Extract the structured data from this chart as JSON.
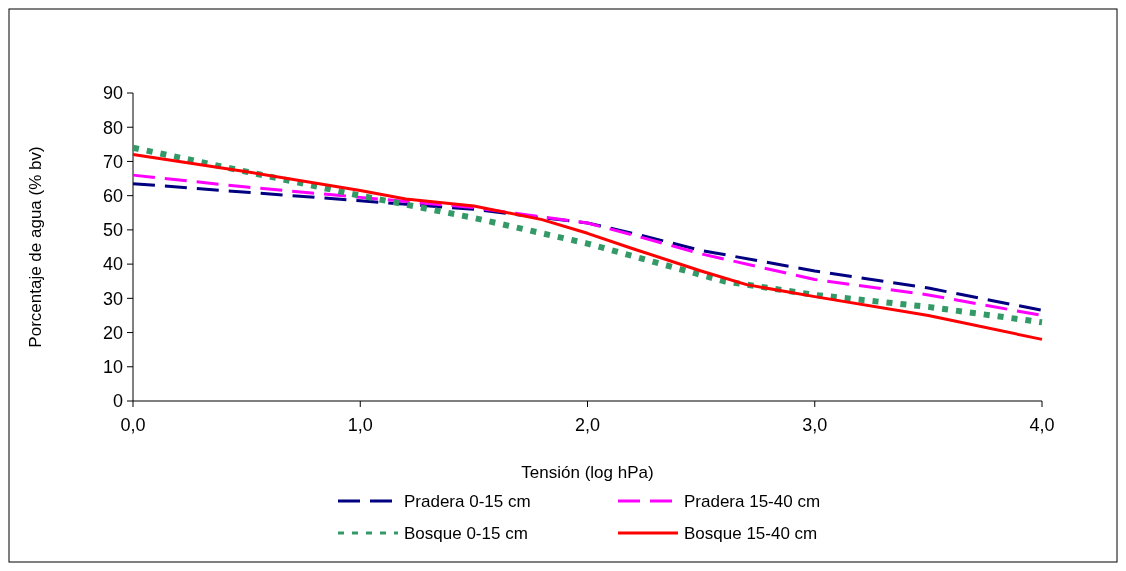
{
  "chart_data": {
    "type": "line",
    "xlabel": "Tensión (log hPa)",
    "ylabel": "Porcentaje de agua (% bv)",
    "xlim": [
      0,
      4
    ],
    "xticks": [
      {
        "value": 0,
        "label": "0,0"
      },
      {
        "value": 1,
        "label": "1,0"
      },
      {
        "value": 2,
        "label": "2,0"
      },
      {
        "value": 3,
        "label": "3,0"
      },
      {
        "value": 4,
        "label": "4,0"
      }
    ],
    "ylim": [
      0,
      90
    ],
    "yticks": [
      0,
      10,
      20,
      30,
      40,
      50,
      60,
      70,
      80,
      90
    ],
    "grid": false,
    "legend": "bottom",
    "series": [
      {
        "name": "Pradera 0-15 cm",
        "color": "#000080",
        "line_style": "dashed",
        "x": [
          0,
          0.5,
          1,
          1.5,
          2,
          2.2,
          2.5,
          3,
          3.5,
          4
        ],
        "values": [
          63.5,
          61,
          58.5,
          56,
          52,
          49,
          44,
          38,
          33,
          26.5
        ]
      },
      {
        "name": "Pradera 15-40 cm",
        "color": "#ff00ff",
        "line_style": "dashed",
        "x": [
          0,
          0.5,
          1,
          1.5,
          2,
          2.2,
          2.5,
          3,
          3.5,
          4
        ],
        "values": [
          66,
          62.5,
          59.5,
          56.5,
          52,
          48.5,
          43,
          35.5,
          31,
          25
        ]
      },
      {
        "name": "Bosque 0-15 cm",
        "color": "#339966",
        "line_style": "dotted",
        "x": [
          0,
          0.5,
          1,
          1.5,
          2,
          2.3,
          2.6,
          3,
          3.5,
          4
        ],
        "values": [
          74,
          67,
          60,
          53.5,
          46,
          40.5,
          35,
          31,
          27.5,
          23
        ]
      },
      {
        "name": "Bosque 15-40 cm",
        "color": "#ff0000",
        "line_style": "solid",
        "x": [
          0,
          0.5,
          1,
          1.2,
          1.5,
          1.8,
          2,
          2.2,
          2.5,
          2.7,
          3,
          3.5,
          4
        ],
        "values": [
          72,
          67,
          61.5,
          59,
          57,
          53,
          49,
          44.5,
          38,
          34,
          30.5,
          25,
          18
        ]
      }
    ]
  }
}
